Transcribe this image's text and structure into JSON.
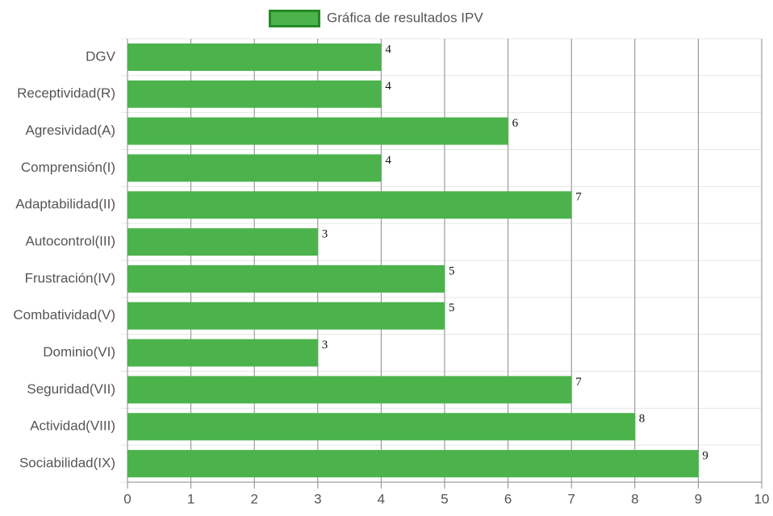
{
  "chart_data": {
    "type": "bar",
    "orientation": "horizontal",
    "categories": [
      "DGV",
      "Receptividad(R)",
      "Agresividad(A)",
      "Comprensión(I)",
      "Adaptabilidad(II)",
      "Autocontrol(III)",
      "Frustración(IV)",
      "Combatividad(V)",
      "Dominio(VI)",
      "Seguridad(VII)",
      "Actividad(VIII)",
      "Sociabilidad(IX)"
    ],
    "series": [
      {
        "name": "Gráfica de resultados IPV",
        "color": "#4cb34c",
        "border_color": "#238b23",
        "values": [
          4,
          4,
          6,
          4,
          7,
          3,
          5,
          5,
          3,
          7,
          8,
          9
        ]
      }
    ],
    "xlim": [
      0,
      10
    ],
    "xticks": [
      0,
      1,
      2,
      3,
      4,
      5,
      6,
      7,
      8,
      9,
      10
    ],
    "grid": true,
    "legend": "top"
  }
}
